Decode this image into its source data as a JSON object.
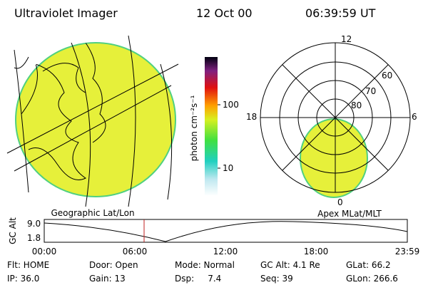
{
  "header": {
    "instrument": "Ultraviolet Imager",
    "date": "12 Oct 00",
    "time": "06:39:59 UT"
  },
  "left_panel": {
    "label": "Geographic Lat/Lon"
  },
  "colorbar": {
    "unit": "photon cm⁻²s⁻¹",
    "ticks": [
      "100",
      "10"
    ]
  },
  "right_panel": {
    "label": "Apex MLat/MLT",
    "mlt_labels": [
      "12",
      "18",
      "6",
      "0"
    ],
    "lat_labels": [
      "60",
      "70",
      "80"
    ]
  },
  "altitude_plot": {
    "ylabel": "GC Alt",
    "yticks": [
      "9.0",
      "1.8"
    ],
    "xticks": [
      "00:00",
      "06:00",
      "12:00",
      "18:00",
      "23:59"
    ]
  },
  "status": {
    "rows": [
      [
        "Flt: HOME",
        "Door: Open",
        "Mode: Normal",
        "GC Alt: 4.1 Re",
        "GLat: 66.2"
      ],
      [
        "IP: 36.0",
        "Gain: 13",
        "Dsp:     7.4",
        "Seq: 39",
        "GLon: 266.6"
      ]
    ]
  }
}
